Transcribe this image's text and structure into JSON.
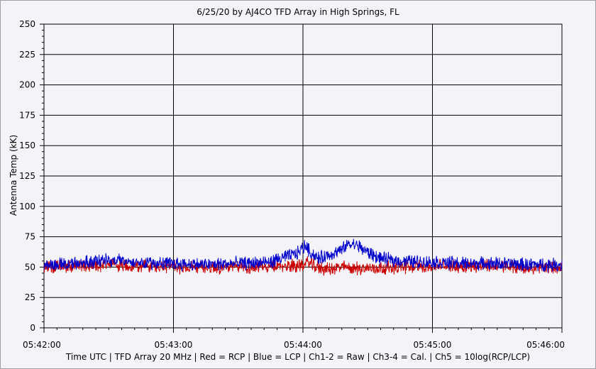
{
  "chart_data": {
    "type": "line",
    "title": "6/25/20  by  AJ4CO TFD Array  in  High Springs, FL",
    "xlabel": "Time UTC | TFD Array 20 MHz | Red = RCP | Blue = LCP | Ch1-2 = Raw | Ch3-4 = Cal. | Ch5 = 10log(RCP/LCP)",
    "ylabel": "Antenna Temp (kK)",
    "x_ticks": [
      "05:42:00",
      "05:43:00",
      "05:44:00",
      "05:45:00",
      "05:46:00"
    ],
    "y_ticks": [
      0,
      25,
      50,
      75,
      100,
      125,
      150,
      175,
      200,
      225,
      250
    ],
    "xlim_minutes": [
      0,
      4
    ],
    "ylim": [
      0,
      250
    ],
    "grid": true,
    "series": [
      {
        "name": "RCP",
        "color": "#cc0000",
        "x_minutes": [
          0,
          0.25,
          0.5,
          0.75,
          1.0,
          1.25,
          1.5,
          1.75,
          1.9,
          2.0,
          2.05,
          2.1,
          2.2,
          2.3,
          2.4,
          2.5,
          2.75,
          3.0,
          3.25,
          3.5,
          3.75,
          4.0
        ],
        "values": [
          50,
          51,
          52,
          51,
          50,
          50,
          50,
          50,
          51,
          52,
          54,
          50,
          48,
          50,
          49,
          49,
          50,
          51,
          51,
          51,
          49,
          50
        ]
      },
      {
        "name": "LCP",
        "color": "#0000cc",
        "x_minutes": [
          0,
          0.25,
          0.5,
          0.75,
          1.0,
          1.25,
          1.5,
          1.75,
          1.85,
          1.95,
          2.02,
          2.06,
          2.12,
          2.2,
          2.3,
          2.35,
          2.42,
          2.5,
          2.6,
          2.75,
          3.0,
          3.25,
          3.5,
          3.75,
          4.0
        ],
        "values": [
          52,
          53,
          56,
          54,
          53,
          52,
          53,
          54,
          58,
          61,
          68,
          62,
          57,
          60,
          64,
          69,
          68,
          62,
          57,
          55,
          54,
          53,
          53,
          52,
          52
        ]
      }
    ]
  }
}
